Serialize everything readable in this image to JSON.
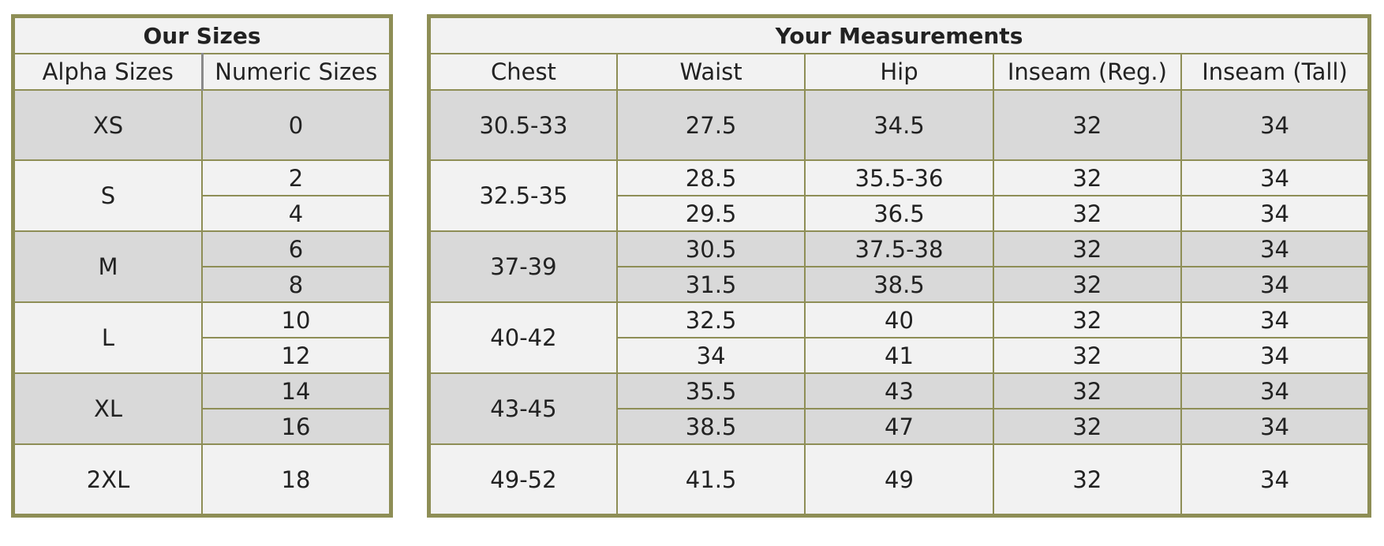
{
  "our_sizes": {
    "title": "Our Sizes",
    "columns": [
      "Alpha Sizes",
      "Numeric Sizes"
    ],
    "groups": [
      {
        "alpha": "XS",
        "numeric": [
          "0"
        ]
      },
      {
        "alpha": "S",
        "numeric": [
          "2",
          "4"
        ]
      },
      {
        "alpha": "M",
        "numeric": [
          "6",
          "8"
        ]
      },
      {
        "alpha": "L",
        "numeric": [
          "10",
          "12"
        ]
      },
      {
        "alpha": "XL",
        "numeric": [
          "14",
          "16"
        ]
      },
      {
        "alpha": "2XL",
        "numeric": [
          "18"
        ]
      }
    ]
  },
  "your_measurements": {
    "title": "Your Measurements",
    "columns": [
      "Chest",
      "Waist",
      "Hip",
      "Inseam (Reg.)",
      "Inseam (Tall)"
    ],
    "groups": [
      {
        "chest": "30.5-33",
        "rows": [
          {
            "waist": "27.5",
            "hip": "34.5",
            "inseam_reg": "32",
            "inseam_tall": "34"
          }
        ]
      },
      {
        "chest": "32.5-35",
        "rows": [
          {
            "waist": "28.5",
            "hip": "35.5-36",
            "inseam_reg": "32",
            "inseam_tall": "34"
          },
          {
            "waist": "29.5",
            "hip": "36.5",
            "inseam_reg": "32",
            "inseam_tall": "34"
          }
        ]
      },
      {
        "chest": "37-39",
        "rows": [
          {
            "waist": "30.5",
            "hip": "37.5-38",
            "inseam_reg": "32",
            "inseam_tall": "34"
          },
          {
            "waist": "31.5",
            "hip": "38.5",
            "inseam_reg": "32",
            "inseam_tall": "34"
          }
        ]
      },
      {
        "chest": "40-42",
        "rows": [
          {
            "waist": "32.5",
            "hip": "40",
            "inseam_reg": "32",
            "inseam_tall": "34"
          },
          {
            "waist": "34",
            "hip": "41",
            "inseam_reg": "32",
            "inseam_tall": "34"
          }
        ]
      },
      {
        "chest": "43-45",
        "rows": [
          {
            "waist": "35.5",
            "hip": "43",
            "inseam_reg": "32",
            "inseam_tall": "34"
          },
          {
            "waist": "38.5",
            "hip": "47",
            "inseam_reg": "32",
            "inseam_tall": "34"
          }
        ]
      },
      {
        "chest": "49-52",
        "rows": [
          {
            "waist": "41.5",
            "hip": "49",
            "inseam_reg": "32",
            "inseam_tall": "34"
          }
        ]
      }
    ]
  },
  "colors": {
    "border": "#8e8e56",
    "shade_fill": "#d9d9d9",
    "light_fill": "#f2f2f2"
  }
}
